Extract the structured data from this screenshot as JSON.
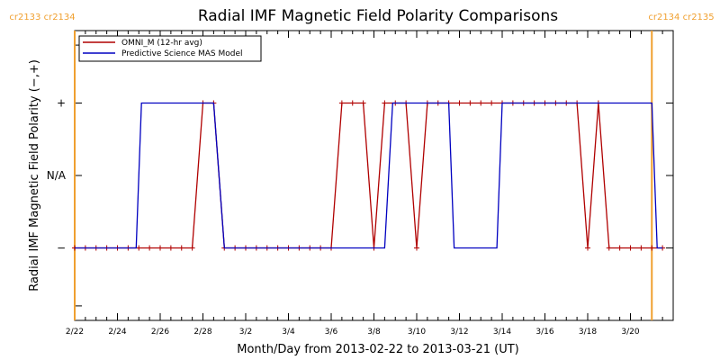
{
  "chart_data": {
    "type": "line",
    "title": "Radial IMF Magnetic Field Polarity Comparisons",
    "xlabel": "Month/Day from 2013-02-22 to 2013-03-21 (UT)",
    "ylabel": "Radial IMF Magnetic Field Polarity (−,+)",
    "x_start": "2013-02-22",
    "xlim": [
      "2013-02-22",
      "2013-03-22"
    ],
    "x_tick_labels": [
      "2/22",
      "2/24",
      "2/26",
      "2/28",
      "3/2",
      "3/4",
      "3/6",
      "3/8",
      "3/10",
      "3/12",
      "3/14",
      "3/16",
      "3/18",
      "3/20"
    ],
    "x_tick_dates": [
      "2013-02-22",
      "2013-02-24",
      "2013-02-26",
      "2013-02-28",
      "2013-03-02",
      "2013-03-04",
      "2013-03-06",
      "2013-03-08",
      "2013-03-10",
      "2013-03-12",
      "2013-03-14",
      "2013-03-16",
      "2013-03-18",
      "2013-03-20"
    ],
    "y_tick_labels": [
      "−",
      "N/A",
      "+"
    ],
    "y_tick_values": [
      -1,
      0,
      1
    ],
    "ylim": [
      -2,
      2
    ],
    "carrington": [
      {
        "date": "2013-02-22",
        "labels": [
          "cr2133",
          "cr2134"
        ]
      },
      {
        "date": "2013-03-21",
        "labels": [
          "cr2134",
          "cr2135"
        ]
      }
    ],
    "series": [
      {
        "name": "OMNI_M (12-hr avg)",
        "color": "#b00000",
        "markers": true,
        "points": [
          [
            "2013-02-22T00:00",
            -1
          ],
          [
            "2013-02-22T12:00",
            -1
          ],
          [
            "2013-02-23T00:00",
            -1
          ],
          [
            "2013-02-23T12:00",
            -1
          ],
          [
            "2013-02-24T00:00",
            -1
          ],
          [
            "2013-02-24T12:00",
            -1
          ],
          [
            "2013-02-25T00:00",
            -1
          ],
          [
            "2013-02-25T12:00",
            -1
          ],
          [
            "2013-02-26T00:00",
            -1
          ],
          [
            "2013-02-26T12:00",
            -1
          ],
          [
            "2013-02-27T00:00",
            -1
          ],
          [
            "2013-02-27T12:00",
            -1
          ],
          [
            "2013-02-28T00:00",
            1
          ],
          [
            "2013-02-28T12:00",
            1
          ],
          [
            "2013-03-01T00:00",
            -1
          ],
          [
            "2013-03-01T12:00",
            -1
          ],
          [
            "2013-03-02T00:00",
            -1
          ],
          [
            "2013-03-02T12:00",
            -1
          ],
          [
            "2013-03-03T00:00",
            -1
          ],
          [
            "2013-03-03T12:00",
            -1
          ],
          [
            "2013-03-04T00:00",
            -1
          ],
          [
            "2013-03-04T12:00",
            -1
          ],
          [
            "2013-03-05T00:00",
            -1
          ],
          [
            "2013-03-05T12:00",
            -1
          ],
          [
            "2013-03-06T00:00",
            -1
          ],
          [
            "2013-03-06T12:00",
            1
          ],
          [
            "2013-03-07T00:00",
            1
          ],
          [
            "2013-03-07T12:00",
            1
          ],
          [
            "2013-03-08T00:00",
            -1
          ],
          [
            "2013-03-08T12:00",
            1
          ],
          [
            "2013-03-09T00:00",
            1
          ],
          [
            "2013-03-09T12:00",
            1
          ],
          [
            "2013-03-10T00:00",
            -1
          ],
          [
            "2013-03-10T12:00",
            1
          ],
          [
            "2013-03-11T00:00",
            1
          ],
          [
            "2013-03-11T12:00",
            1
          ],
          [
            "2013-03-12T00:00",
            1
          ],
          [
            "2013-03-12T12:00",
            1
          ],
          [
            "2013-03-13T00:00",
            1
          ],
          [
            "2013-03-13T12:00",
            1
          ],
          [
            "2013-03-14T00:00",
            1
          ],
          [
            "2013-03-14T12:00",
            1
          ],
          [
            "2013-03-15T00:00",
            1
          ],
          [
            "2013-03-15T12:00",
            1
          ],
          [
            "2013-03-16T00:00",
            1
          ],
          [
            "2013-03-16T12:00",
            1
          ],
          [
            "2013-03-17T00:00",
            1
          ],
          [
            "2013-03-17T12:00",
            1
          ],
          [
            "2013-03-18T00:00",
            -1
          ],
          [
            "2013-03-18T12:00",
            1
          ],
          [
            "2013-03-19T00:00",
            -1
          ],
          [
            "2013-03-19T12:00",
            -1
          ],
          [
            "2013-03-20T00:00",
            -1
          ],
          [
            "2013-03-20T12:00",
            -1
          ],
          [
            "2013-03-21T00:00",
            -1
          ],
          [
            "2013-03-21T12:00",
            -1
          ]
        ]
      },
      {
        "name": "Predictive Science MAS Model",
        "color": "#0000c0",
        "markers": false,
        "points": [
          [
            "2013-02-22T00:00",
            -1
          ],
          [
            "2013-02-24T21:00",
            -1
          ],
          [
            "2013-02-25T03:00",
            1
          ],
          [
            "2013-02-28T12:00",
            1
          ],
          [
            "2013-03-01T00:00",
            -1
          ],
          [
            "2013-03-08T12:00",
            -1
          ],
          [
            "2013-03-08T21:00",
            1
          ],
          [
            "2013-03-11T12:00",
            1
          ],
          [
            "2013-03-11T18:00",
            -1
          ],
          [
            "2013-03-13T18:00",
            -1
          ],
          [
            "2013-03-14T00:00",
            1
          ],
          [
            "2013-03-21T00:00",
            1
          ],
          [
            "2013-03-21T06:00",
            -1
          ],
          [
            "2013-03-21T12:00",
            -1
          ]
        ]
      }
    ]
  }
}
